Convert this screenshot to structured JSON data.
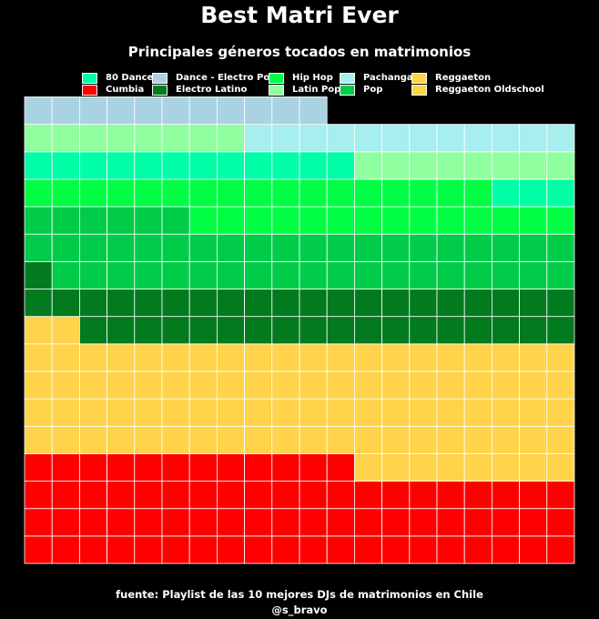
{
  "title": "Best Matri Ever",
  "subtitle": "Principales géneros tocados en matrimonios",
  "caption": {
    "source": "fuente: Playlist de las 10 mejores DJs de matrimonios en Chile",
    "author": "@s_bravo"
  },
  "chart_data": {
    "type": "waffle",
    "title": "Best Matri Ever",
    "subtitle": "Principales géneros tocados en matrimonios",
    "grid": {
      "columns": 20,
      "rows": 17,
      "fill_order": "bottom-up, left-to-right",
      "cell_border": "#ffffff"
    },
    "legend_position": "top",
    "categories": [
      {
        "name": "Cumbia",
        "count": 72,
        "color": "#ff0000"
      },
      {
        "name": "Reggaeton",
        "count": 42,
        "color": "#ffd34a"
      },
      {
        "name": "Reggaeton Oldschool",
        "count": 48,
        "color": "#ffd34a"
      },
      {
        "name": "Electro Latino",
        "count": 39,
        "color": "#027a1e"
      },
      {
        "name": "Pop",
        "count": 45,
        "color": "#00cc4a"
      },
      {
        "name": "Hip Hop",
        "count": 31,
        "color": "#00ff44"
      },
      {
        "name": "80 Dance",
        "count": 15,
        "color": "#00ffa6"
      },
      {
        "name": "Latin Pop",
        "count": 16,
        "color": "#90ff9f"
      },
      {
        "name": "Pachanga",
        "count": 12,
        "color": "#a7eeef"
      },
      {
        "name": "Dance - Electro Pop",
        "count": 11,
        "color": "#a9d3e2"
      }
    ],
    "legend": [
      {
        "name": "80 Dance",
        "color": "#00ffa6"
      },
      {
        "name": "Cumbia",
        "color": "#ff0000"
      },
      {
        "name": "Dance - Electro Pop",
        "color": "#a9d3e2"
      },
      {
        "name": "Electro Latino",
        "color": "#027a1e"
      },
      {
        "name": "Hip Hop",
        "color": "#00ff44"
      },
      {
        "name": "Latin Pop",
        "color": "#90ff9f"
      },
      {
        "name": "Pachanga",
        "color": "#a7eeef"
      },
      {
        "name": "Pop",
        "color": "#00cc4a"
      },
      {
        "name": "Reggaeton",
        "color": "#ffd34a"
      },
      {
        "name": "Reggaeton Oldschool",
        "color": "#ffd34a"
      }
    ]
  }
}
